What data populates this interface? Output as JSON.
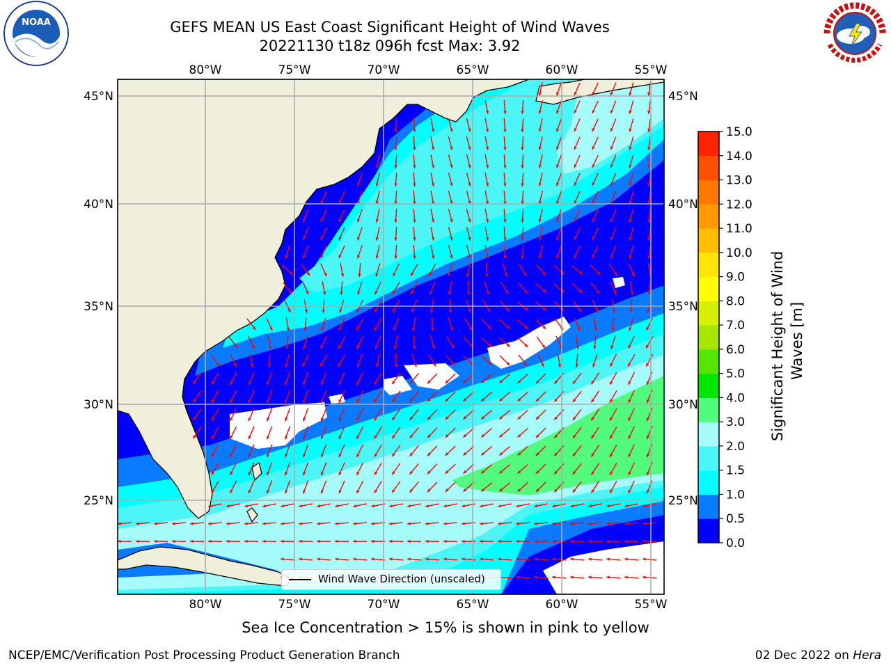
{
  "header": {
    "title_line1": "GEFS MEAN US East Coast Significant Height of Wind Waves",
    "title_line2": "20221130 t18z 096h fcst   Max: 3.92"
  },
  "logos": {
    "left": {
      "icon": "noaa-logo-icon",
      "text": "NOAA"
    },
    "right": {
      "icon": "nws-logo-icon",
      "text": "NATIONAL WEATHER SERVICE"
    }
  },
  "map": {
    "lon_labels": [
      "80°W",
      "75°W",
      "70°W",
      "65°W",
      "60°W",
      "55°W"
    ],
    "lat_labels": [
      "45°N",
      "40°N",
      "35°N",
      "30°N",
      "25°N"
    ],
    "lon_extent": [
      -85,
      -54.5
    ],
    "lat_extent": [
      20.5,
      46
    ],
    "legend_label": "Wind Wave Direction (unscaled)",
    "arrow_color": "#ff0000",
    "land_color": "#efefdc"
  },
  "colorbar": {
    "label": "Significant Height of Wind Waves [m]",
    "ticks": [
      "0.0",
      "0.5",
      "1.0",
      "1.5",
      "2.0",
      "3.0",
      "4.0",
      "5.0",
      "6.0",
      "7.0",
      "8.0",
      "9.0",
      "10.0",
      "11.0",
      "12.0",
      "13.0",
      "14.0",
      "15.0"
    ],
    "colors": [
      "#0000ff",
      "#0a7bff",
      "#00ffff",
      "#4cf6f6",
      "#a6fbfb",
      "#52fb7d",
      "#00e600",
      "#55e600",
      "#a6e600",
      "#d6f000",
      "#ffff00",
      "#ffe600",
      "#ffbf00",
      "#ff9a00",
      "#ff7800",
      "#ff5000",
      "#ff2400"
    ]
  },
  "footer": {
    "note": "Sea Ice Concentration > 15% is shown in pink to yellow",
    "left": "NCEP/EMC/Verification Post Processing Product Generation Branch",
    "right_date": "02 Dec 2022 on ",
    "right_machine": "Hera"
  }
}
